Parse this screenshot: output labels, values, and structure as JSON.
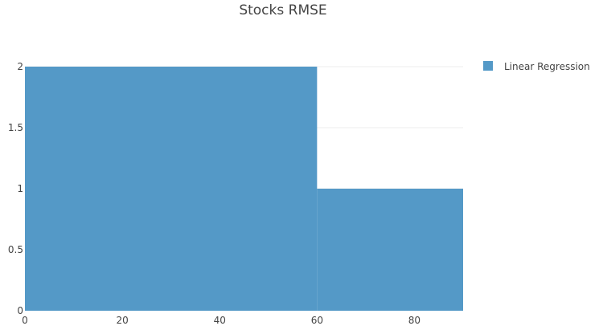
{
  "chart_data": {
    "type": "bar",
    "title": "Stocks RMSE",
    "xlabel": "",
    "ylabel": "",
    "xlim": [
      0,
      90
    ],
    "ylim": [
      0,
      2
    ],
    "x_ticks": [
      0,
      20,
      40,
      60,
      80
    ],
    "y_ticks": [
      0,
      0.5,
      1,
      1.5,
      2
    ],
    "x_tick_labels": [
      "0",
      "20",
      "40",
      "60",
      "80"
    ],
    "y_tick_labels": [
      "0",
      "0.5",
      "1",
      "1.5",
      "2"
    ],
    "grid": true,
    "legend_position": "top-right",
    "series": [
      {
        "name": "Linear Regression",
        "color": "#5499c7",
        "bins": [
          {
            "x0": 0,
            "x1": 60,
            "value": 2
          },
          {
            "x0": 60,
            "x1": 90,
            "value": 1
          }
        ]
      }
    ]
  }
}
